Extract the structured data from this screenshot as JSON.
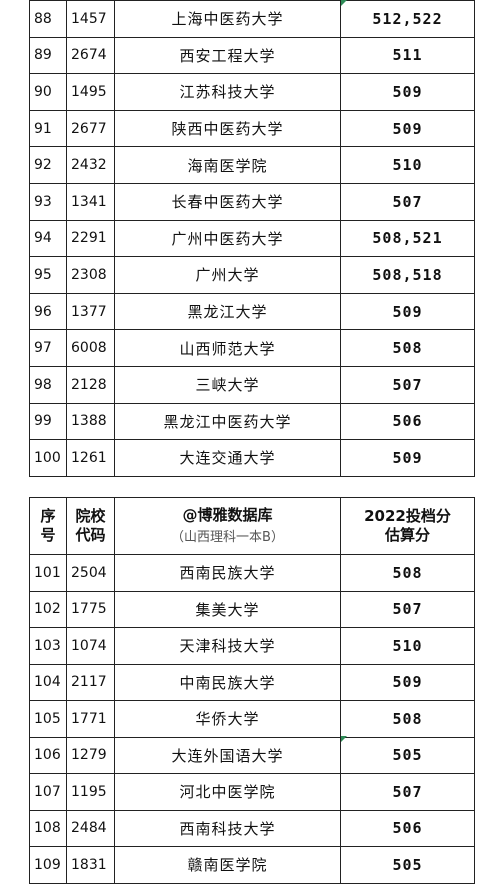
{
  "table1": {
    "rows": [
      {
        "seq": "88",
        "code": "1457",
        "name": "上海中医药大学",
        "score": "512,522"
      },
      {
        "seq": "89",
        "code": "2674",
        "name": "西安工程大学",
        "score": "511"
      },
      {
        "seq": "90",
        "code": "1495",
        "name": "江苏科技大学",
        "score": "509"
      },
      {
        "seq": "91",
        "code": "2677",
        "name": "陕西中医药大学",
        "score": "509"
      },
      {
        "seq": "92",
        "code": "2432",
        "name": "海南医学院",
        "score": "510"
      },
      {
        "seq": "93",
        "code": "1341",
        "name": "长春中医药大学",
        "score": "507"
      },
      {
        "seq": "94",
        "code": "2291",
        "name": "广州中医药大学",
        "score": "508,521"
      },
      {
        "seq": "95",
        "code": "2308",
        "name": "广州大学",
        "score": "508,518"
      },
      {
        "seq": "96",
        "code": "1377",
        "name": "黑龙江大学",
        "score": "509"
      },
      {
        "seq": "97",
        "code": "6008",
        "name": "山西师范大学",
        "score": "508"
      },
      {
        "seq": "98",
        "code": "2128",
        "name": "三峡大学",
        "score": "507"
      },
      {
        "seq": "99",
        "code": "1388",
        "name": "黑龙江中医药大学",
        "score": "506"
      },
      {
        "seq": "100",
        "code": "1261",
        "name": "大连交通大学",
        "score": "509"
      }
    ]
  },
  "table2": {
    "header": {
      "seq_label": "序号",
      "code_label": "院校代码",
      "source_label": "@博雅数据库",
      "category_label": "（山西理科一本B）",
      "score_label": "2022投档分估算分"
    },
    "rows": [
      {
        "seq": "101",
        "code": "2504",
        "name": "西南民族大学",
        "score": "508"
      },
      {
        "seq": "102",
        "code": "1775",
        "name": "集美大学",
        "score": "507"
      },
      {
        "seq": "103",
        "code": "1074",
        "name": "天津科技大学",
        "score": "510"
      },
      {
        "seq": "104",
        "code": "2117",
        "name": "中南民族大学",
        "score": "509"
      },
      {
        "seq": "105",
        "code": "1771",
        "name": "华侨大学",
        "score": "508"
      },
      {
        "seq": "106",
        "code": "1279",
        "name": "大连外国语大学",
        "score": "505"
      },
      {
        "seq": "107",
        "code": "1195",
        "name": "河北中医学院",
        "score": "507"
      },
      {
        "seq": "108",
        "code": "2484",
        "name": "西南科技大学",
        "score": "506"
      },
      {
        "seq": "109",
        "code": "1831",
        "name": "赣南医学院",
        "score": "505"
      }
    ]
  }
}
